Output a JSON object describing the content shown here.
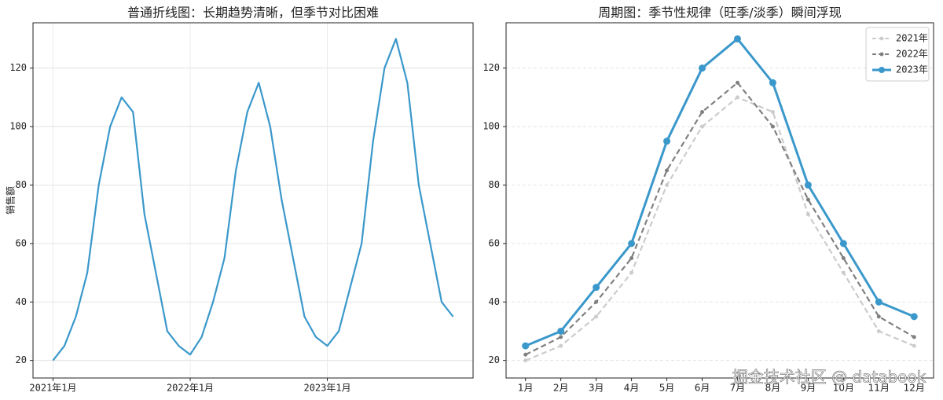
{
  "chart_data": [
    {
      "type": "line",
      "title": "普通折线图：长期趋势清晰，但季节对比困难",
      "y_label": "销售额",
      "x": [
        "2021-01",
        "2021-02",
        "2021-03",
        "2021-04",
        "2021-05",
        "2021-06",
        "2021-07",
        "2021-08",
        "2021-09",
        "2021-10",
        "2021-11",
        "2021-12",
        "2022-01",
        "2022-02",
        "2022-03",
        "2022-04",
        "2022-05",
        "2022-06",
        "2022-07",
        "2022-08",
        "2022-09",
        "2022-10",
        "2022-11",
        "2022-12",
        "2023-01",
        "2023-02",
        "2023-03",
        "2023-04",
        "2023-05",
        "2023-06",
        "2023-07",
        "2023-08",
        "2023-09",
        "2023-10",
        "2023-11",
        "2023-12"
      ],
      "series": [
        {
          "color": "#3a98cb",
          "values": [
            20,
            25,
            35,
            50,
            80,
            100,
            110,
            105,
            70,
            50,
            30,
            25,
            22,
            28,
            40,
            55,
            85,
            105,
            115,
            100,
            75,
            55,
            35,
            28,
            25,
            30,
            45,
            60,
            95,
            120,
            130,
            115,
            80,
            60,
            40,
            35
          ]
        }
      ],
      "xticks": [
        {
          "value": "2021-01",
          "label": "2021年1月"
        },
        {
          "value": "2022-01",
          "label": "2022年1月"
        },
        {
          "value": "2023-01",
          "label": "2023年1月"
        }
      ],
      "ylim": [
        14,
        135.5
      ],
      "yticks": [
        20,
        40,
        60,
        80,
        100,
        120
      ],
      "grid": true
    },
    {
      "type": "line",
      "title": "周期图：季节性规律（旺季/淡季）瞬间浮现",
      "categories": [
        "1月",
        "2月",
        "3月",
        "4月",
        "5月",
        "6月",
        "7月",
        "8月",
        "9月",
        "10月",
        "11月",
        "12月"
      ],
      "series": [
        {
          "name": "2021年",
          "color": "#cccccc",
          "dashed": true,
          "values": [
            20,
            25,
            35,
            50,
            80,
            100,
            110,
            105,
            70,
            50,
            30,
            25
          ]
        },
        {
          "name": "2022年",
          "color": "#808080",
          "dashed": true,
          "values": [
            22,
            28,
            40,
            55,
            85,
            105,
            115,
            100,
            75,
            55,
            35,
            28
          ]
        },
        {
          "name": "2023年",
          "color": "#3a98cb",
          "dashed": false,
          "values": [
            25,
            30,
            45,
            60,
            95,
            120,
            130,
            115,
            80,
            60,
            40,
            35
          ]
        }
      ],
      "ylim": [
        14,
        135.5
      ],
      "yticks": [
        20,
        40,
        60,
        80,
        100,
        120
      ],
      "grid": true,
      "legend": "upper-right"
    }
  ],
  "watermark": "掘金技术社区 @ databook"
}
